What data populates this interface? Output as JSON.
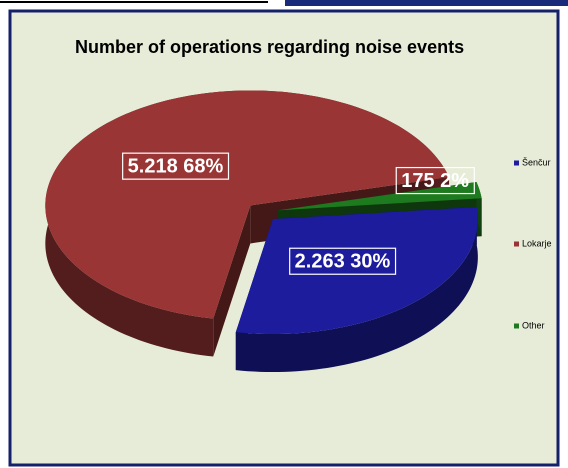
{
  "chart_data": {
    "type": "pie",
    "title": "Number of operations regarding noise events",
    "categories": [
      "Šenčur",
      "Lokarje",
      "Other"
    ],
    "values": [
      2263,
      5218,
      175
    ],
    "value_labels": [
      "2.263  30%",
      "5.218  68%",
      "175  2%"
    ],
    "colors": [
      "#1c1c9c",
      "#993535",
      "#1e7a1e"
    ],
    "legend": "right"
  }
}
